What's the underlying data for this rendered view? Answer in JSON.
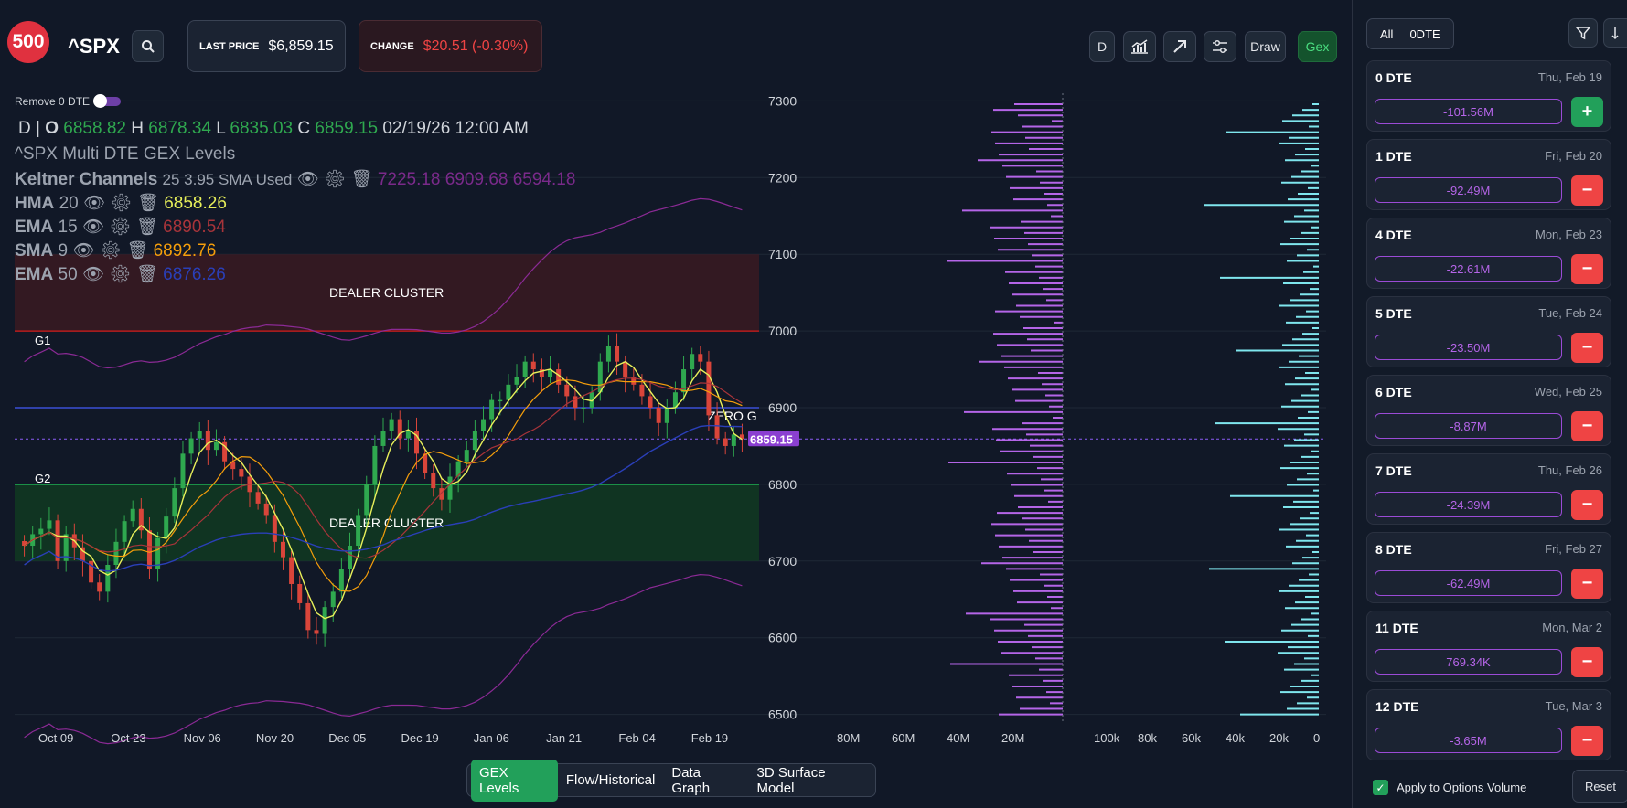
{
  "header": {
    "logo": "500",
    "ticker": "^SPX",
    "last_price_label": "LAST PRICE",
    "last_price": "$6,859.15",
    "change_label": "CHANGE",
    "change": "$20.51 (-0.30%)",
    "tools": {
      "interval": "D",
      "draw": "Draw",
      "gex": "Gex"
    }
  },
  "chart": {
    "remove0dte": "Remove 0 DTE",
    "ohlc": {
      "interval": "D",
      "o_label": "O",
      "o": "6858.82",
      "h_label": "H",
      "h": "6878.34",
      "l_label": "L",
      "l": "6835.03",
      "c_label": "C",
      "c": "6859.15",
      "datetime": "02/19/26 12:00 AM"
    },
    "indicators": {
      "title": "^SPX Multi DTE GEX Levels",
      "keltner_name": "Keltner Channels",
      "keltner_params": "25 3.95 SMA Used",
      "keltner_values": "7225.18 6909.68 6594.18",
      "hma_name": "HMA",
      "hma_len": "20",
      "hma_val": "6858.26",
      "ema15_name": "EMA",
      "ema15_len": "15",
      "ema15_val": "6890.54",
      "sma_name": "SMA",
      "sma_len": "9",
      "sma_val": "6892.76",
      "ema50_name": "EMA",
      "ema50_len": "50",
      "ema50_val": "6876.26"
    },
    "labels": {
      "dealer1": "DEALER CLUSTER",
      "dealer2": "DEALER CLUSTER",
      "g1": "G1",
      "g2": "G2",
      "zero_g": "ZERO G",
      "price_tag": "6859.15"
    },
    "x_ticks": [
      "Oct 09",
      "Oct 23",
      "Nov 06",
      "Nov 20",
      "Dec 05",
      "Dec 19",
      "Jan 06",
      "Jan 21",
      "Feb 04",
      "Feb 19"
    ],
    "y_ticks": [
      "7300",
      "7200",
      "7100",
      "7000",
      "6900",
      "6800",
      "6700",
      "6600",
      "6500"
    ],
    "gex_x_ticks": [
      "80M",
      "60M",
      "40M",
      "20M"
    ],
    "vol_x_ticks": [
      "100k",
      "80k",
      "60k",
      "40k",
      "20k",
      "0"
    ],
    "colors": {
      "purple": "#b565e8",
      "cyan": "#7fe6ee",
      "bull": "#2fa84f",
      "bear": "#d9453a"
    }
  },
  "chart_data": {
    "type": "candlestick",
    "x_ticks": [
      "Oct 09",
      "Oct 23",
      "Nov 06",
      "Nov 20",
      "Dec 05",
      "Dec 19",
      "Jan 06",
      "Jan 21",
      "Feb 04",
      "Feb 19"
    ],
    "ylim": [
      6490,
      7310
    ],
    "closes": [
      6720,
      6735,
      6742,
      6753,
      6700,
      6735,
      6718,
      6700,
      6672,
      6660,
      6695,
      6725,
      6752,
      6768,
      6740,
      6690,
      6730,
      6758,
      6795,
      6840,
      6860,
      6870,
      6845,
      6855,
      6830,
      6820,
      6810,
      6790,
      6775,
      6760,
      6725,
      6705,
      6670,
      6645,
      6610,
      6605,
      6640,
      6660,
      6690,
      6720,
      6760,
      6800,
      6850,
      6870,
      6885,
      6860,
      6870,
      6840,
      6815,
      6795,
      6780,
      6810,
      6830,
      6845,
      6870,
      6885,
      6910,
      6910,
      6930,
      6940,
      6960,
      6950,
      6940,
      6950,
      6930,
      6915,
      6900,
      6900,
      6920,
      6960,
      6980,
      6960,
      6940,
      6930,
      6915,
      6900,
      6880,
      6900,
      6920,
      6950,
      6970,
      6960,
      6890,
      6860,
      6850,
      6865,
      6859.15
    ],
    "keltner": {
      "upper": "7225.18",
      "middle": "6909.68",
      "lower": "6594.18"
    },
    "levels": {
      "G1": 7000,
      "zero_gamma": 6900,
      "G2": 6800,
      "dealer_cluster_upper": [
        7000,
        7100
      ],
      "dealer_cluster_lower": [
        6700,
        6800
      ],
      "last": 6859.15
    }
  },
  "sidebar": {
    "filter_all": "All",
    "filter_0dte": "0DTE",
    "cards": [
      {
        "dte": "0 DTE",
        "date": "Thu, Feb 19",
        "value": "-101.56M",
        "action": "+"
      },
      {
        "dte": "1 DTE",
        "date": "Fri, Feb 20",
        "value": "-92.49M",
        "action": "−"
      },
      {
        "dte": "4 DTE",
        "date": "Mon, Feb 23",
        "value": "-22.61M",
        "action": "−"
      },
      {
        "dte": "5 DTE",
        "date": "Tue, Feb 24",
        "value": "-23.50M",
        "action": "−"
      },
      {
        "dte": "6 DTE",
        "date": "Wed, Feb 25",
        "value": "-8.87M",
        "action": "−"
      },
      {
        "dte": "7 DTE",
        "date": "Thu, Feb 26",
        "value": "-24.39M",
        "action": "−"
      },
      {
        "dte": "8 DTE",
        "date": "Fri, Feb 27",
        "value": "-62.49M",
        "action": "−"
      },
      {
        "dte": "11 DTE",
        "date": "Mon, Mar 2",
        "value": "769.34K",
        "action": "−"
      },
      {
        "dte": "12 DTE",
        "date": "Tue, Mar 3",
        "value": "-3.65M",
        "action": "−"
      }
    ],
    "apply_label": "Apply to Options Volume",
    "reset": "Reset"
  },
  "bottom_tabs": [
    "GEX Levels",
    "Flow/Historical",
    "Data Graph",
    "3D Surface Model"
  ]
}
